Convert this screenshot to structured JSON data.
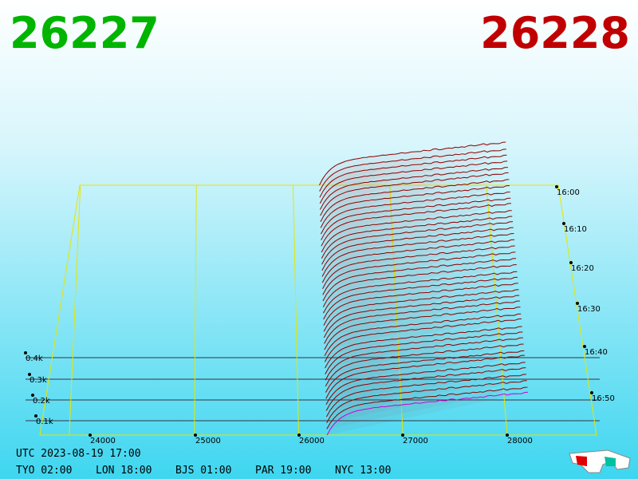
{
  "header": {
    "bid": "26227",
    "ask": "26228"
  },
  "price_axis": [
    "24000",
    "25000",
    "26000",
    "27000",
    "28000"
  ],
  "time_axis": [
    "16:00",
    "16:10",
    "16:20",
    "16:30",
    "16:40",
    "16:50"
  ],
  "depth_axis": [
    "0.4k",
    "0.3k",
    "0.2k",
    "0.1k"
  ],
  "footer": {
    "utc": "UTC 2023-08-19 17:00",
    "clocks": [
      "TYO 02:00",
      "LON 18:00",
      "BJS 01:00",
      "PAR 19:00",
      "NYC 13:00"
    ]
  }
}
